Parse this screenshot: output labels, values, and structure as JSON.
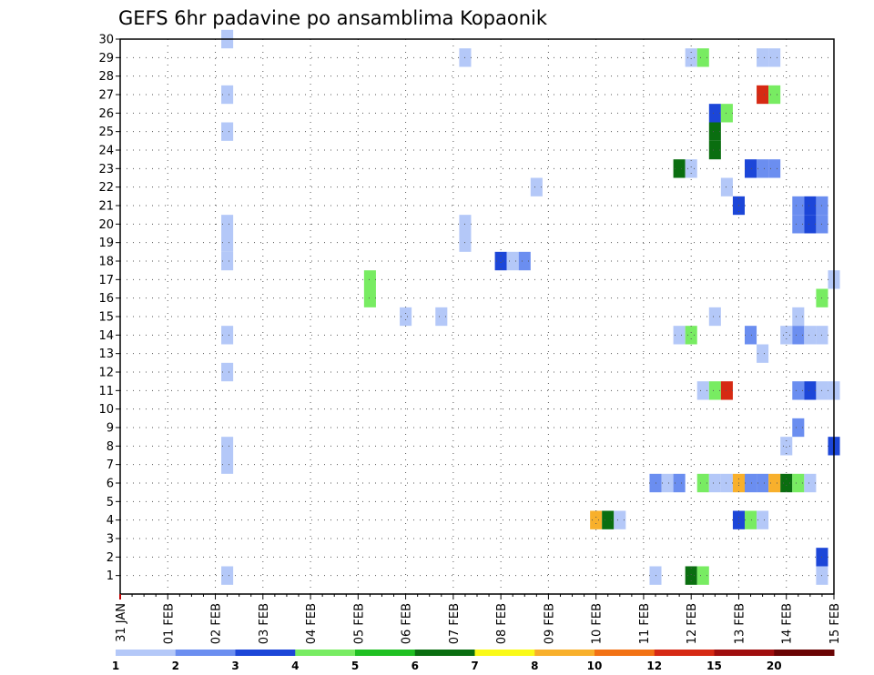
{
  "chart_data": {
    "type": "heatmap",
    "title": "GEFS 6hr padavine po ansamblima Kopaonik",
    "xlabel": "",
    "ylabel": "",
    "x_start": "31 JAN",
    "step_hours": 6,
    "x_ticks": [
      "31 JAN",
      "01 FEB",
      "02 FEB",
      "03 FEB",
      "04 FEB",
      "05 FEB",
      "06 FEB",
      "07 FEB",
      "08 FEB",
      "09 FEB",
      "10 FEB",
      "11 FEB",
      "12 FEB",
      "13 FEB",
      "14 FEB",
      "15 FEB"
    ],
    "y_ticks": [
      1,
      2,
      3,
      4,
      5,
      6,
      7,
      8,
      9,
      10,
      11,
      12,
      13,
      14,
      15,
      16,
      17,
      18,
      19,
      20,
      21,
      22,
      23,
      24,
      25,
      26,
      27,
      28,
      29,
      30
    ],
    "ylim": [
      0,
      30
    ],
    "grid": true,
    "colorbar": {
      "labels": [
        "1",
        "2",
        "3",
        "4",
        "5",
        "6",
        "7",
        "8",
        "10",
        "12",
        "15",
        "20"
      ],
      "colors": [
        "#b4c8f8",
        "#6b8ef0",
        "#1c46d8",
        "#78ec62",
        "#20c022",
        "#0a6e10",
        "#fafa18",
        "#f8b02c",
        "#f27214",
        "#d62a14",
        "#a00e0e",
        "#6a0404"
      ]
    },
    "points": [
      {
        "m": 30,
        "x": "02 FEB 06z",
        "c": 1
      },
      {
        "m": 29,
        "x": "07 FEB 06z",
        "c": 1
      },
      {
        "m": 29,
        "x": "12 FEB 00z",
        "c": 1
      },
      {
        "m": 29,
        "x": "12 FEB 06z",
        "c": 4
      },
      {
        "m": 29,
        "x": "13 FEB 12z",
        "c": 1
      },
      {
        "m": 29,
        "x": "13 FEB 18z",
        "c": 1
      },
      {
        "m": 27,
        "x": "02 FEB 06z",
        "c": 1
      },
      {
        "m": 27,
        "x": "13 FEB 12z",
        "c": 10
      },
      {
        "m": 27,
        "x": "13 FEB 18z",
        "c": 4
      },
      {
        "m": 26,
        "x": "12 FEB 12z",
        "c": 3
      },
      {
        "m": 26,
        "x": "12 FEB 18z",
        "c": 4
      },
      {
        "m": 25,
        "x": "02 FEB 06z",
        "c": 1
      },
      {
        "m": 25,
        "x": "12 FEB 12z",
        "c": 6
      },
      {
        "m": 24,
        "x": "12 FEB 12z",
        "c": 6
      },
      {
        "m": 23,
        "x": "11 FEB 18z",
        "c": 6
      },
      {
        "m": 23,
        "x": "12 FEB 00z",
        "c": 1
      },
      {
        "m": 23,
        "x": "13 FEB 06z",
        "c": 3
      },
      {
        "m": 23,
        "x": "13 FEB 12z",
        "c": 2
      },
      {
        "m": 23,
        "x": "13 FEB 18z",
        "c": 2
      },
      {
        "m": 22,
        "x": "08 FEB 18z",
        "c": 1
      },
      {
        "m": 22,
        "x": "12 FEB 18z",
        "c": 1
      },
      {
        "m": 21,
        "x": "13 FEB 00z",
        "c": 3
      },
      {
        "m": 21,
        "x": "14 FEB 06z",
        "c": 2
      },
      {
        "m": 21,
        "x": "14 FEB 12z",
        "c": 3
      },
      {
        "m": 21,
        "x": "14 FEB 18z",
        "c": 2
      },
      {
        "m": 20,
        "x": "02 FEB 06z",
        "c": 1
      },
      {
        "m": 20,
        "x": "07 FEB 06z",
        "c": 1
      },
      {
        "m": 20,
        "x": "14 FEB 06z",
        "c": 2
      },
      {
        "m": 20,
        "x": "14 FEB 12z",
        "c": 3
      },
      {
        "m": 20,
        "x": "14 FEB 18z",
        "c": 2
      },
      {
        "m": 19,
        "x": "02 FEB 06z",
        "c": 1
      },
      {
        "m": 19,
        "x": "07 FEB 06z",
        "c": 1
      },
      {
        "m": 18,
        "x": "02 FEB 06z",
        "c": 1
      },
      {
        "m": 18,
        "x": "08 FEB 00z",
        "c": 3
      },
      {
        "m": 18,
        "x": "08 FEB 06z",
        "c": 1
      },
      {
        "m": 18,
        "x": "08 FEB 12z",
        "c": 2
      },
      {
        "m": 17,
        "x": "05 FEB 06z",
        "c": 4
      },
      {
        "m": 17,
        "x": "15 FEB 00z",
        "c": 1
      },
      {
        "m": 16,
        "x": "05 FEB 06z",
        "c": 4
      },
      {
        "m": 16,
        "x": "14 FEB 18z",
        "c": 4
      },
      {
        "m": 15,
        "x": "06 FEB 00z",
        "c": 1
      },
      {
        "m": 15,
        "x": "06 FEB 18z",
        "c": 1
      },
      {
        "m": 15,
        "x": "12 FEB 12z",
        "c": 1
      },
      {
        "m": 15,
        "x": "14 FEB 06z",
        "c": 1
      },
      {
        "m": 14,
        "x": "02 FEB 06z",
        "c": 1
      },
      {
        "m": 14,
        "x": "11 FEB 18z",
        "c": 1
      },
      {
        "m": 14,
        "x": "12 FEB 00z",
        "c": 4
      },
      {
        "m": 14,
        "x": "13 FEB 06z",
        "c": 2
      },
      {
        "m": 14,
        "x": "14 FEB 00z",
        "c": 1
      },
      {
        "m": 14,
        "x": "14 FEB 06z",
        "c": 2
      },
      {
        "m": 14,
        "x": "14 FEB 12z",
        "c": 1
      },
      {
        "m": 14,
        "x": "14 FEB 18z",
        "c": 1
      },
      {
        "m": 13,
        "x": "13 FEB 12z",
        "c": 1
      },
      {
        "m": 12,
        "x": "02 FEB 06z",
        "c": 1
      },
      {
        "m": 11,
        "x": "12 FEB 06z",
        "c": 1
      },
      {
        "m": 11,
        "x": "12 FEB 12z",
        "c": 4
      },
      {
        "m": 11,
        "x": "12 FEB 18z",
        "c": 10
      },
      {
        "m": 11,
        "x": "14 FEB 06z",
        "c": 2
      },
      {
        "m": 11,
        "x": "14 FEB 12z",
        "c": 3
      },
      {
        "m": 11,
        "x": "14 FEB 18z",
        "c": 1
      },
      {
        "m": 11,
        "x": "15 FEB 00z",
        "c": 1
      },
      {
        "m": 9,
        "x": "14 FEB 06z",
        "c": 2
      },
      {
        "m": 8,
        "x": "02 FEB 06z",
        "c": 1
      },
      {
        "m": 8,
        "x": "14 FEB 00z",
        "c": 1
      },
      {
        "m": 8,
        "x": "15 FEB 00z",
        "c": 3
      },
      {
        "m": 7,
        "x": "02 FEB 06z",
        "c": 1
      },
      {
        "m": 6,
        "x": "11 FEB 06z",
        "c": 2
      },
      {
        "m": 6,
        "x": "11 FEB 12z",
        "c": 1
      },
      {
        "m": 6,
        "x": "11 FEB 18z",
        "c": 2
      },
      {
        "m": 6,
        "x": "12 FEB 06z",
        "c": 4
      },
      {
        "m": 6,
        "x": "12 FEB 12z",
        "c": 1
      },
      {
        "m": 6,
        "x": "12 FEB 18z",
        "c": 1
      },
      {
        "m": 6,
        "x": "13 FEB 00z",
        "c": 8
      },
      {
        "m": 6,
        "x": "13 FEB 06z",
        "c": 2
      },
      {
        "m": 6,
        "x": "13 FEB 12z",
        "c": 2
      },
      {
        "m": 6,
        "x": "13 FEB 18z",
        "c": 8
      },
      {
        "m": 6,
        "x": "14 FEB 00z",
        "c": 6
      },
      {
        "m": 6,
        "x": "14 FEB 06z",
        "c": 4
      },
      {
        "m": 6,
        "x": "14 FEB 12z",
        "c": 1
      },
      {
        "m": 4,
        "x": "10 FEB 00z",
        "c": 8
      },
      {
        "m": 4,
        "x": "10 FEB 06z",
        "c": 6
      },
      {
        "m": 4,
        "x": "10 FEB 12z",
        "c": 1
      },
      {
        "m": 4,
        "x": "13 FEB 00z",
        "c": 3
      },
      {
        "m": 4,
        "x": "13 FEB 06z",
        "c": 4
      },
      {
        "m": 4,
        "x": "13 FEB 12z",
        "c": 1
      },
      {
        "m": 2,
        "x": "14 FEB 18z",
        "c": 3
      },
      {
        "m": 1,
        "x": "02 FEB 06z",
        "c": 1
      },
      {
        "m": 1,
        "x": "11 FEB 06z",
        "c": 1
      },
      {
        "m": 1,
        "x": "12 FEB 00z",
        "c": 6
      },
      {
        "m": 1,
        "x": "12 FEB 06z",
        "c": 4
      },
      {
        "m": 1,
        "x": "14 FEB 18z",
        "c": 1
      }
    ]
  }
}
